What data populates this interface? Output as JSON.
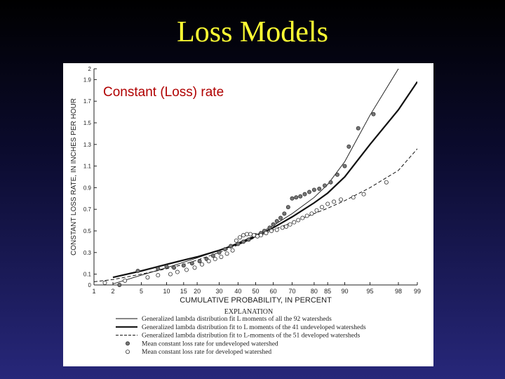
{
  "slide": {
    "title": "Loss Models"
  },
  "overlay_label": "Constant (Loss) rate",
  "chart_data": {
    "type": "line",
    "xlabel": "CUMULATIVE PROBABILITY, IN PERCENT",
    "ylabel": "CONSTANT LOSS RATE, IN INCHES PER HOUR",
    "x_ticks": [
      1,
      2,
      5,
      10,
      15,
      20,
      30,
      40,
      50,
      60,
      70,
      80,
      85,
      90,
      95,
      98,
      99
    ],
    "y_ticks": [
      "0",
      "0.1",
      "0.3",
      "0.5",
      "0.7",
      "0.9",
      "1.1",
      "1.3",
      "1.5",
      "1.7",
      "1.9",
      "2"
    ],
    "ylim": [
      0,
      2
    ],
    "x_scale": "probability",
    "legend_title": "EXPLANATION",
    "series": [
      {
        "name": "Generalized lambda distribution fit L moments of all the 92 watersheds",
        "style": "thin-solid",
        "x": [
          2,
          5,
          10,
          15,
          20,
          30,
          40,
          50,
          60,
          70,
          80,
          85,
          90,
          95,
          98,
          99
        ],
        "y": [
          0.01,
          0.09,
          0.16,
          0.21,
          0.25,
          0.32,
          0.39,
          0.46,
          0.55,
          0.66,
          0.81,
          0.93,
          1.14,
          1.57,
          2.0,
          2.25
        ]
      },
      {
        "name": "Generalized lambda distribution fit to L moments of the 41 undeveloped watersheds",
        "style": "thick-solid",
        "x": [
          2,
          5,
          10,
          15,
          20,
          30,
          40,
          50,
          60,
          70,
          80,
          85,
          90,
          95,
          98,
          99
        ],
        "y": [
          0.07,
          0.13,
          0.19,
          0.23,
          0.26,
          0.32,
          0.38,
          0.45,
          0.53,
          0.63,
          0.76,
          0.85,
          1.0,
          1.3,
          1.62,
          1.88
        ]
      },
      {
        "name": "Generalized lambda distribution fit to L-moments of the 51 developed watersheds",
        "style": "dashed",
        "x": [
          1,
          2,
          5,
          10,
          15,
          20,
          30,
          40,
          50,
          60,
          70,
          80,
          85,
          90,
          95,
          98,
          99
        ],
        "y": [
          0.03,
          0.05,
          0.1,
          0.15,
          0.19,
          0.23,
          0.3,
          0.37,
          0.44,
          0.51,
          0.58,
          0.66,
          0.71,
          0.78,
          0.9,
          1.06,
          1.26
        ]
      },
      {
        "name": "Mean constant loss rate for undeveloped watershed",
        "style": "filled-points",
        "x": [
          2.5,
          4.5,
          8,
          10,
          12,
          15,
          18,
          21,
          24,
          27,
          30,
          33,
          36,
          40,
          43,
          46,
          50,
          53,
          55,
          58,
          60,
          62,
          64,
          66,
          68,
          70,
          72,
          74,
          76,
          78,
          80,
          82,
          84,
          86,
          88,
          90,
          91,
          93,
          95.5
        ],
        "y": [
          0.0,
          0.13,
          0.15,
          0.17,
          0.16,
          0.18,
          0.2,
          0.22,
          0.24,
          0.27,
          0.3,
          0.33,
          0.36,
          0.38,
          0.4,
          0.42,
          0.46,
          0.48,
          0.5,
          0.53,
          0.56,
          0.59,
          0.62,
          0.66,
          0.72,
          0.8,
          0.81,
          0.82,
          0.84,
          0.86,
          0.88,
          0.89,
          0.92,
          0.95,
          1.02,
          1.1,
          1.28,
          1.45,
          1.58
        ]
      },
      {
        "name": "Mean constant loss rate for developed watershed",
        "style": "open-points",
        "x": [
          1.5,
          3,
          6,
          8,
          11,
          13,
          16,
          19,
          22,
          25,
          28,
          31,
          34,
          37,
          39,
          41,
          43,
          45,
          47,
          49,
          51,
          53,
          56,
          59,
          62,
          65,
          67,
          69,
          71,
          73,
          75,
          77,
          79,
          81,
          83,
          85,
          87,
          89,
          92,
          94,
          97
        ],
        "y": [
          0.02,
          0.04,
          0.07,
          0.09,
          0.1,
          0.12,
          0.14,
          0.16,
          0.19,
          0.22,
          0.24,
          0.26,
          0.29,
          0.32,
          0.41,
          0.44,
          0.46,
          0.47,
          0.47,
          0.46,
          0.45,
          0.46,
          0.48,
          0.5,
          0.51,
          0.53,
          0.54,
          0.56,
          0.58,
          0.6,
          0.62,
          0.64,
          0.66,
          0.69,
          0.72,
          0.75,
          0.77,
          0.79,
          0.81,
          0.84,
          0.95
        ]
      }
    ]
  },
  "colors": {
    "slide_title": "#ffff33",
    "overlay_label": "#b00000",
    "panel_bg": "#ffffff",
    "line": "#111111",
    "filled_point": "#777777"
  }
}
